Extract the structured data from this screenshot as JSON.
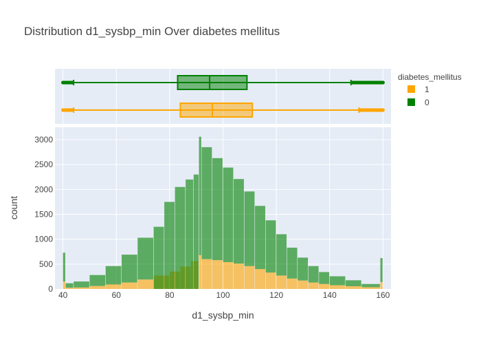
{
  "chart_data": {
    "type": "histogram",
    "title": "Distribution d1_sysbp_min Over diabetes mellitus",
    "xlabel": "d1_sysbp_min",
    "ylabel": "count",
    "xlim": [
      37,
      163
    ],
    "ylim": [
      0,
      3250
    ],
    "xticks": [
      40,
      60,
      80,
      100,
      120,
      140,
      160
    ],
    "yticks": [
      0,
      500,
      1000,
      1500,
      2000,
      2500,
      3000
    ],
    "barmode": "stack",
    "legend": {
      "title": "diabetes_mellitus",
      "position": "top-right"
    },
    "grid": true,
    "colors": {
      "1": "#FFA500",
      "0": "#008000",
      "plot_bg": "#E5ECF6"
    },
    "series": [
      {
        "name": "1",
        "bins": [
          {
            "start": 40,
            "end": 41,
            "count": 150
          },
          {
            "start": 41,
            "end": 44,
            "count": 25
          },
          {
            "start": 44,
            "end": 50,
            "count": 30
          },
          {
            "start": 50,
            "end": 56,
            "count": 60
          },
          {
            "start": 56,
            "end": 62,
            "count": 90
          },
          {
            "start": 62,
            "end": 68,
            "count": 130
          },
          {
            "start": 68,
            "end": 74,
            "count": 190
          },
          {
            "start": 74,
            "end": 80,
            "count": 270
          },
          {
            "start": 80,
            "end": 84,
            "count": 350
          },
          {
            "start": 84,
            "end": 88,
            "count": 450
          },
          {
            "start": 88,
            "end": 91,
            "count": 560
          },
          {
            "start": 91,
            "end": 92,
            "count": 680
          },
          {
            "start": 92,
            "end": 96,
            "count": 600
          },
          {
            "start": 96,
            "end": 100,
            "count": 580
          },
          {
            "start": 100,
            "end": 104,
            "count": 540
          },
          {
            "start": 104,
            "end": 108,
            "count": 510
          },
          {
            "start": 108,
            "end": 112,
            "count": 460
          },
          {
            "start": 112,
            "end": 116,
            "count": 400
          },
          {
            "start": 116,
            "end": 120,
            "count": 330
          },
          {
            "start": 120,
            "end": 124,
            "count": 270
          },
          {
            "start": 124,
            "end": 128,
            "count": 210
          },
          {
            "start": 128,
            "end": 132,
            "count": 170
          },
          {
            "start": 132,
            "end": 136,
            "count": 130
          },
          {
            "start": 136,
            "end": 140,
            "count": 100
          },
          {
            "start": 140,
            "end": 146,
            "count": 75
          },
          {
            "start": 146,
            "end": 152,
            "count": 55
          },
          {
            "start": 152,
            "end": 159,
            "count": 35
          },
          {
            "start": 159,
            "end": 160,
            "count": 140
          }
        ],
        "box": {
          "min": 40,
          "lower_fence": 44,
          "q1": 84,
          "median": 96,
          "q3": 111,
          "upper_fence": 151,
          "max": 160
        }
      },
      {
        "name": "0",
        "bins": [
          {
            "start": 40,
            "end": 41,
            "count": 580
          },
          {
            "start": 41,
            "end": 44,
            "count": 90
          },
          {
            "start": 44,
            "end": 50,
            "count": 120
          },
          {
            "start": 50,
            "end": 56,
            "count": 220
          },
          {
            "start": 56,
            "end": 62,
            "count": 370
          },
          {
            "start": 62,
            "end": 68,
            "count": 560
          },
          {
            "start": 68,
            "end": 74,
            "count": 840
          },
          {
            "start": 74,
            "end": 78,
            "count": 1250
          },
          {
            "start": 78,
            "end": 82,
            "count": 1750
          },
          {
            "start": 82,
            "end": 86,
            "count": 2050
          },
          {
            "start": 86,
            "end": 89,
            "count": 2200
          },
          {
            "start": 89,
            "end": 91,
            "count": 2300
          },
          {
            "start": 91,
            "end": 92,
            "count": 2380
          },
          {
            "start": 92,
            "end": 96,
            "count": 2250
          },
          {
            "start": 96,
            "end": 100,
            "count": 2050
          },
          {
            "start": 100,
            "end": 104,
            "count": 1900
          },
          {
            "start": 104,
            "end": 108,
            "count": 1700
          },
          {
            "start": 108,
            "end": 112,
            "count": 1500
          },
          {
            "start": 112,
            "end": 116,
            "count": 1270
          },
          {
            "start": 116,
            "end": 120,
            "count": 1050
          },
          {
            "start": 120,
            "end": 124,
            "count": 830
          },
          {
            "start": 124,
            "end": 128,
            "count": 620
          },
          {
            "start": 128,
            "end": 132,
            "count": 460
          },
          {
            "start": 132,
            "end": 136,
            "count": 330
          },
          {
            "start": 136,
            "end": 140,
            "count": 240
          },
          {
            "start": 140,
            "end": 146,
            "count": 180
          },
          {
            "start": 146,
            "end": 152,
            "count": 120
          },
          {
            "start": 152,
            "end": 159,
            "count": 65
          },
          {
            "start": 159,
            "end": 160,
            "count": 480
          }
        ],
        "box": {
          "min": 40,
          "lower_fence": 44,
          "q1": 83,
          "median": 95,
          "q3": 109,
          "upper_fence": 148,
          "max": 160
        }
      }
    ]
  }
}
